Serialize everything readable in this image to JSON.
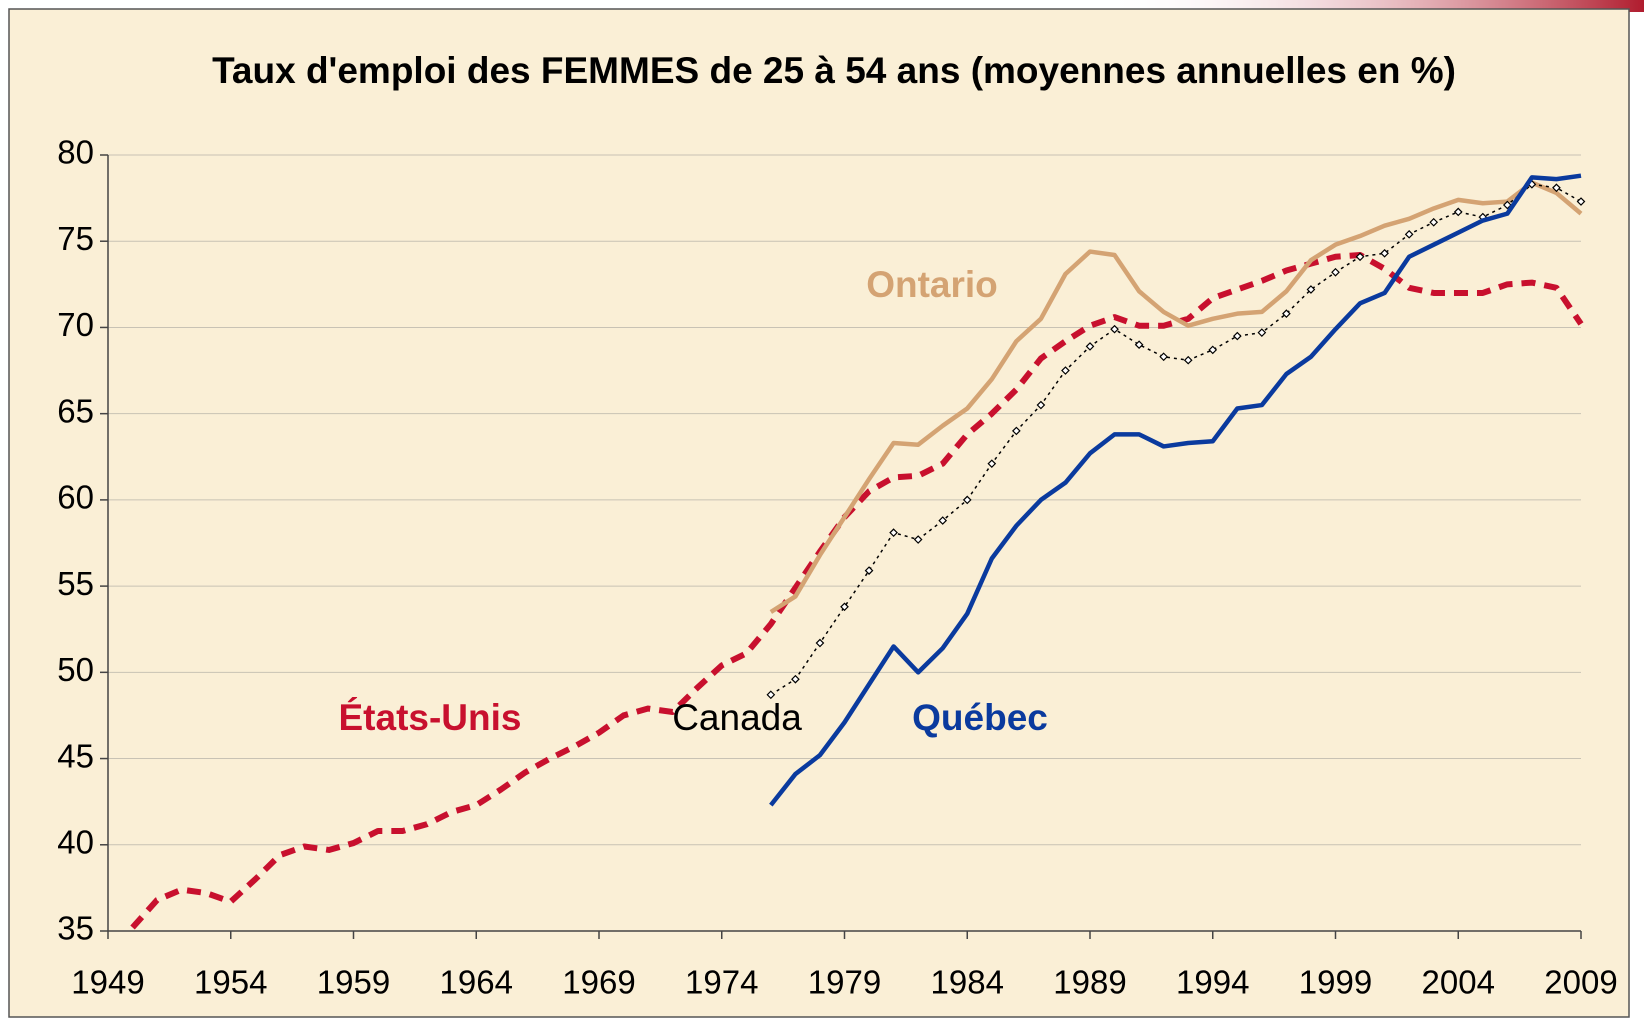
{
  "chart_data": {
    "type": "line",
    "title": "Taux d'emploi des FEMMES de 25 à 54 ans (moyennes annuelles en %)",
    "x": [
      1950,
      1951,
      1952,
      1953,
      1954,
      1955,
      1956,
      1957,
      1958,
      1959,
      1960,
      1961,
      1962,
      1963,
      1964,
      1965,
      1966,
      1967,
      1968,
      1969,
      1970,
      1971,
      1972,
      1973,
      1974,
      1975,
      1976,
      1977,
      1978,
      1979,
      1980,
      1981,
      1982,
      1983,
      1984,
      1985,
      1986,
      1987,
      1988,
      1989,
      1990,
      1991,
      1992,
      1993,
      1994,
      1995,
      1996,
      1997,
      1998,
      1999,
      2000,
      2001,
      2002,
      2003,
      2004,
      2005,
      2006,
      2007,
      2008,
      2009
    ],
    "series": [
      {
        "name": "États-Unis",
        "color": "#c8102e",
        "style": "dashed",
        "values": [
          35.2,
          36.8,
          37.4,
          37.2,
          36.7,
          38.0,
          39.4,
          39.9,
          39.7,
          40.1,
          40.8,
          40.8,
          41.2,
          41.9,
          42.3,
          43.2,
          44.2,
          45.0,
          45.7,
          46.5,
          47.5,
          47.9,
          47.7,
          49.1,
          50.4,
          51.1,
          52.8,
          54.9,
          57.0,
          59.0,
          60.5,
          61.3,
          61.4,
          62.1,
          63.8,
          65.0,
          66.4,
          68.2,
          69.2,
          70.1,
          70.6,
          70.1,
          70.1,
          70.5,
          71.7,
          72.2,
          72.7,
          73.3,
          73.7,
          74.1,
          74.2,
          73.4,
          72.3,
          72.0,
          72.0,
          72.0,
          72.5,
          72.6,
          72.3,
          70.2
        ]
      },
      {
        "name": "Ontario",
        "color": "#d4a373",
        "style": "solid",
        "values": [
          null,
          null,
          null,
          null,
          null,
          null,
          null,
          null,
          null,
          null,
          null,
          null,
          null,
          null,
          null,
          null,
          null,
          null,
          null,
          null,
          null,
          null,
          null,
          null,
          null,
          null,
          53.5,
          54.4,
          56.8,
          59.0,
          61.2,
          63.3,
          63.2,
          64.3,
          65.3,
          67.0,
          69.2,
          70.5,
          73.1,
          74.4,
          74.2,
          72.1,
          70.9,
          70.1,
          70.5,
          70.8,
          70.9,
          72.1,
          73.9,
          74.8,
          75.3,
          75.9,
          76.3,
          76.9,
          77.4,
          77.2,
          77.3,
          78.4,
          77.8,
          76.6
        ]
      },
      {
        "name": "Canada",
        "color": "#000000",
        "style": "dotted",
        "values": [
          null,
          null,
          null,
          null,
          null,
          null,
          null,
          null,
          null,
          null,
          null,
          null,
          null,
          null,
          null,
          null,
          null,
          null,
          null,
          null,
          null,
          null,
          null,
          null,
          null,
          null,
          48.7,
          49.6,
          51.7,
          53.8,
          55.9,
          58.1,
          57.7,
          58.8,
          60.0,
          62.1,
          64.0,
          65.5,
          67.5,
          68.9,
          69.9,
          69.0,
          68.3,
          68.1,
          68.7,
          69.5,
          69.7,
          70.8,
          72.2,
          73.2,
          74.1,
          74.3,
          75.4,
          76.1,
          76.7,
          76.4,
          77.1,
          78.3,
          78.1,
          77.3
        ]
      },
      {
        "name": "Québec",
        "color": "#0a3a9e",
        "style": "solid",
        "values": [
          null,
          null,
          null,
          null,
          null,
          null,
          null,
          null,
          null,
          null,
          null,
          null,
          null,
          null,
          null,
          null,
          null,
          null,
          null,
          null,
          null,
          null,
          null,
          null,
          null,
          null,
          42.3,
          44.1,
          45.2,
          47.1,
          49.3,
          51.5,
          50.0,
          51.4,
          53.4,
          56.6,
          58.5,
          60.0,
          61.0,
          62.7,
          63.8,
          63.8,
          63.1,
          63.3,
          63.4,
          65.3,
          65.5,
          67.3,
          68.3,
          69.9,
          71.4,
          72.0,
          74.1,
          74.8,
          75.5,
          76.2,
          76.6,
          78.7,
          78.6,
          78.8
        ]
      }
    ],
    "xlim": [
      1949,
      2009
    ],
    "xticks": [
      1949,
      1954,
      1959,
      1964,
      1969,
      1974,
      1979,
      1984,
      1989,
      1994,
      1999,
      2004,
      2009
    ],
    "ylim": [
      35,
      80
    ],
    "yticks": [
      35,
      40,
      45,
      50,
      55,
      60,
      65,
      70,
      75,
      80
    ],
    "grid": true
  }
}
